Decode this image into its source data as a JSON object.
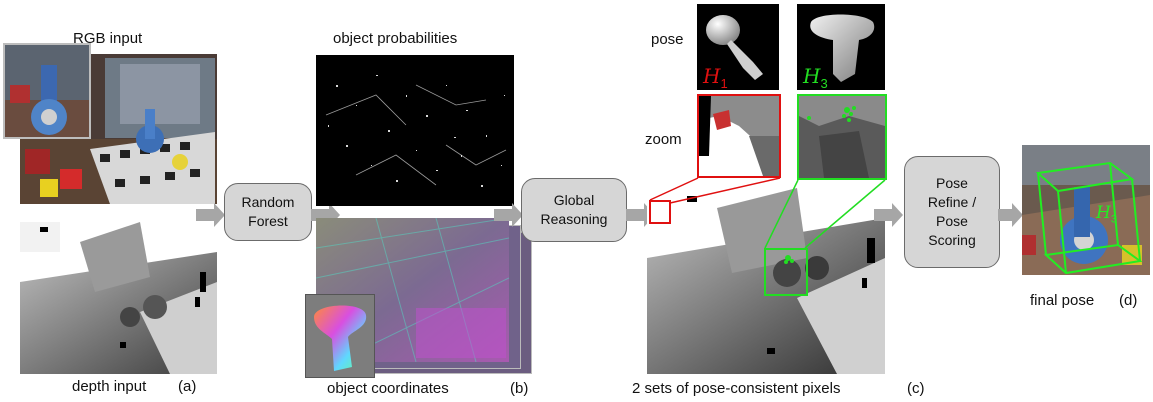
{
  "panel_a": {
    "rgb_label": "RGB input",
    "depth_label": "depth input",
    "tag": "(a)"
  },
  "random_forest": {
    "line1": "Random",
    "line2": "Forest"
  },
  "panel_b": {
    "prob_label": "object probabilities",
    "coord_label": "object coordinates",
    "tag": "(b)"
  },
  "global_reasoning": {
    "line1": "Global",
    "line2": "Reasoning"
  },
  "panel_c": {
    "pose_label": "pose",
    "zoom_label": "zoom",
    "h1_base": "H",
    "h1_sub": "1",
    "h3_base": "H",
    "h3_sub": "3",
    "caption": "2 sets of pose-consistent pixels",
    "tag": "(c)"
  },
  "pose_refine": {
    "line1": "Pose",
    "line2": "Refine /",
    "line3": "Pose",
    "line4": "Scoring"
  },
  "panel_d": {
    "caption": "final pose",
    "tag": "(d)",
    "h3_base": "H",
    "h3_sub": "3"
  },
  "colors": {
    "box_fill": "#d6d6d6",
    "arrow": "#a6a6a6",
    "hypothesis_red": "#e01010",
    "hypothesis_green": "#22dd22"
  }
}
